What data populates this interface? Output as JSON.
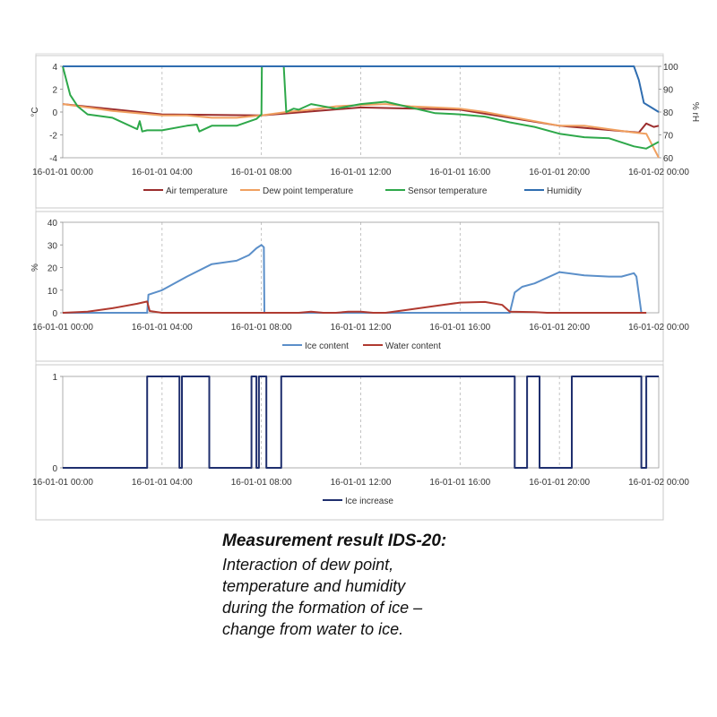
{
  "chart_data": [
    {
      "type": "line",
      "title": "",
      "ylabel": "°C",
      "y2label": "% rH",
      "ylim": [
        -4,
        4
      ],
      "y2lim": [
        60,
        100
      ],
      "yticks": [
        "4",
        "2",
        "0",
        "-2",
        "-4"
      ],
      "y2ticks": [
        "100",
        "90",
        "80",
        "70",
        "60"
      ],
      "xticks": [
        "16-01-01 00:00",
        "16-01-01 04:00",
        "16-01-01 08:00",
        "16-01-01 12:00",
        "16-01-01 16:00",
        "16-01-01 20:00",
        "16-01-02 00:00"
      ],
      "xlim_hours": [
        0,
        24
      ],
      "grid": "vertical dashed",
      "legend_position": "bottom",
      "series": [
        {
          "name": "Air temperature",
          "color": "#9b2d2d",
          "axis": "left",
          "x": [
            0,
            4,
            8,
            12,
            16,
            20,
            23.2,
            23.5,
            23.8,
            24
          ],
          "y": [
            0.7,
            -0.2,
            -0.3,
            0.4,
            0.2,
            -1.2,
            -1.8,
            -1.0,
            -1.3,
            -1.2
          ]
        },
        {
          "name": "Dew point temperature",
          "color": "#f0a060",
          "axis": "left",
          "x": [
            0,
            1,
            2,
            3,
            4,
            5,
            6,
            7,
            8,
            9,
            10,
            11,
            12,
            13,
            14,
            15,
            16,
            17,
            18,
            19,
            20,
            21,
            22,
            23,
            23.5,
            24
          ],
          "y": [
            0.7,
            0.4,
            0.1,
            -0.1,
            -0.3,
            -0.3,
            -0.5,
            -0.5,
            -0.3,
            0.0,
            0.2,
            0.5,
            0.6,
            0.7,
            0.5,
            0.4,
            0.3,
            0.0,
            -0.4,
            -0.8,
            -1.2,
            -1.2,
            -1.5,
            -1.8,
            -1.9,
            -4.0
          ]
        },
        {
          "name": "Sensor temperature",
          "color": "#2ea84a",
          "axis": "left",
          "x": [
            0,
            0.3,
            0.6,
            1,
            2,
            3,
            3.1,
            3.2,
            3.4,
            4,
            5,
            5.4,
            5.5,
            6,
            7,
            7.8,
            8.0,
            8.02,
            8.1,
            8.9,
            9,
            9.3,
            9.5,
            10,
            11,
            12,
            13,
            14,
            15,
            16,
            17,
            18,
            19,
            20,
            21,
            22,
            23,
            23.5,
            24
          ],
          "y": [
            4.0,
            1.5,
            0.5,
            -0.2,
            -0.5,
            -1.5,
            -0.8,
            -1.7,
            -1.6,
            -1.6,
            -1.2,
            -1.1,
            -1.7,
            -1.2,
            -1.2,
            -0.6,
            -0.2,
            4.0,
            4.0,
            4.0,
            0.0,
            0.3,
            0.2,
            0.7,
            0.3,
            0.7,
            0.9,
            0.4,
            -0.1,
            -0.2,
            -0.4,
            -0.9,
            -1.3,
            -1.9,
            -2.2,
            -2.3,
            -3.0,
            -3.2,
            -2.6
          ]
        },
        {
          "name": "Humidity",
          "color": "#2f6db0",
          "axis": "right",
          "x": [
            0,
            23.0,
            23.2,
            23.4,
            23.7,
            24
          ],
          "y": [
            100,
            100,
            94,
            84,
            82,
            80
          ]
        }
      ]
    },
    {
      "type": "line",
      "title": "",
      "ylabel": "%",
      "ylim": [
        0,
        40
      ],
      "yticks": [
        "40",
        "30",
        "20",
        "10",
        "0"
      ],
      "xticks": [
        "16-01-01 00:00",
        "16-01-01 04:00",
        "16-01-01 08:00",
        "16-01-01 12:00",
        "16-01-01 16:00",
        "16-01-01 20:00",
        "16-01-02 00:00"
      ],
      "xlim_hours": [
        0,
        24
      ],
      "grid": "vertical dashed",
      "legend_position": "bottom",
      "series": [
        {
          "name": "Ice content",
          "color": "#5b8fc9",
          "x": [
            0,
            3.4,
            3.45,
            4,
            5,
            6,
            7,
            7.5,
            7.8,
            8.0,
            8.1,
            8.12,
            18.0,
            18.2,
            18.5,
            19,
            20,
            21,
            22,
            22.5,
            23.0,
            23.1,
            23.3,
            23.5
          ],
          "y": [
            0,
            0,
            8,
            10,
            16,
            21.5,
            23,
            25.5,
            28.5,
            30,
            29,
            0,
            0,
            9,
            11.5,
            13,
            18,
            16.5,
            16,
            16,
            17.5,
            16,
            0,
            0
          ]
        },
        {
          "name": "Water content",
          "color": "#b03a30",
          "x": [
            0,
            1,
            2,
            3,
            3.4,
            3.5,
            4,
            9.5,
            10,
            10.5,
            11,
            11.5,
            12,
            12.5,
            13,
            14,
            15,
            16,
            17,
            17.7,
            18,
            19,
            19.5,
            23.2,
            23.5
          ],
          "y": [
            0,
            0.5,
            2,
            4,
            5,
            0.8,
            0,
            0,
            0.5,
            0,
            0,
            0.5,
            0.5,
            0,
            0,
            1.5,
            3,
            4.5,
            4.8,
            3.5,
            0.5,
            0.3,
            0,
            0,
            0
          ]
        }
      ]
    },
    {
      "type": "line",
      "title": "",
      "ylabel": "",
      "ylim": [
        0,
        1
      ],
      "yticks": [
        "1",
        "0"
      ],
      "xticks": [
        "16-01-01 00:00",
        "16-01-01 04:00",
        "16-01-01 08:00",
        "16-01-01 12:00",
        "16-01-01 16:00",
        "16-01-01 20:00",
        "16-01-02 00:00"
      ],
      "xlim_hours": [
        0,
        24
      ],
      "grid": "vertical dashed",
      "legend_position": "bottom",
      "series": [
        {
          "name": "Ice increase",
          "color": "#1f2f6e",
          "x": [
            0,
            3.4,
            3.4,
            4.7,
            4.7,
            4.8,
            4.8,
            5.9,
            5.9,
            7.6,
            7.6,
            7.8,
            7.8,
            7.9,
            7.9,
            8.2,
            8.2,
            8.8,
            8.8,
            18.2,
            18.2,
            18.7,
            18.7,
            19.2,
            19.2,
            20.5,
            20.5,
            23.3,
            23.3,
            23.5,
            23.5,
            24
          ],
          "y": [
            0,
            0,
            1,
            1,
            0,
            0,
            1,
            1,
            0,
            0,
            1,
            1,
            0,
            0,
            1,
            1,
            0,
            0,
            1,
            1,
            0,
            0,
            1,
            1,
            0,
            0,
            1,
            1,
            0,
            0,
            1,
            1
          ]
        }
      ]
    }
  ],
  "caption": {
    "title": "Measurement result IDS-20:",
    "lines": [
      "Interaction of dew point,",
      "temperature and humidity",
      "during the formation of ice –",
      "change from water to ice."
    ]
  }
}
